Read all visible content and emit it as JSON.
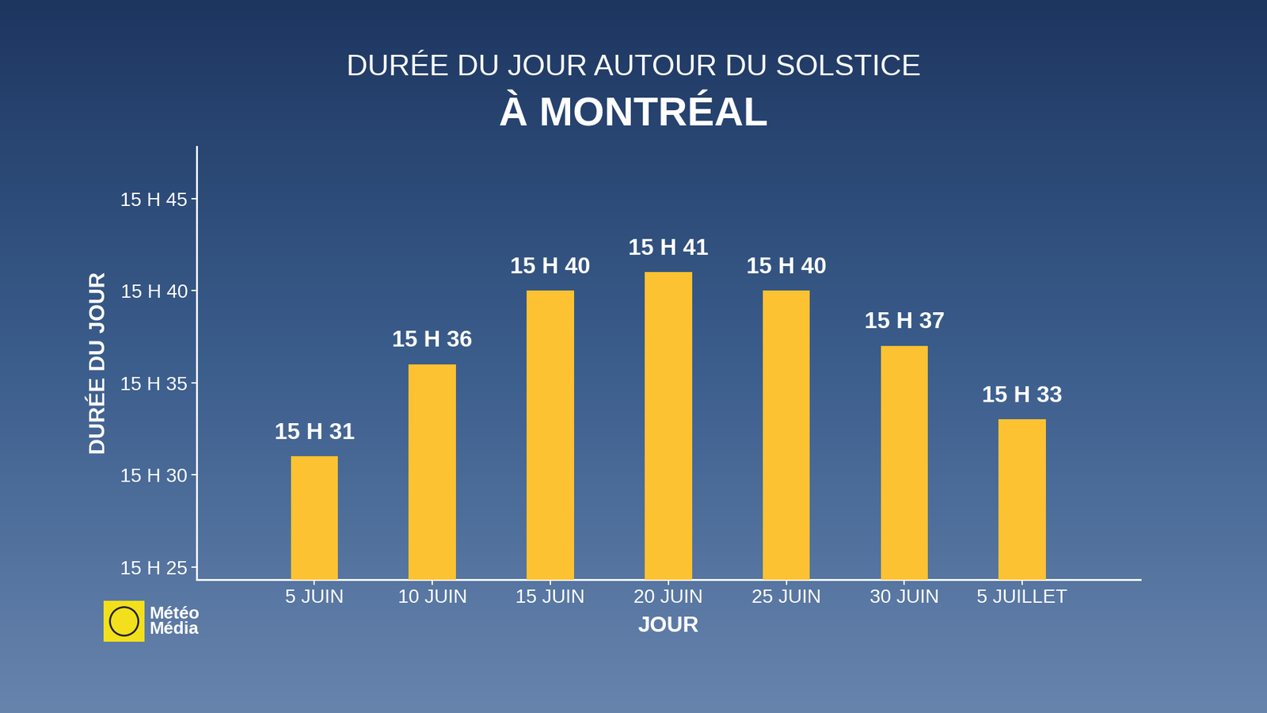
{
  "chart_data": {
    "type": "bar",
    "title": "DURÉE DU JOUR AUTOUR DU SOLSTICE",
    "subtitle": "À MONTRÉAL",
    "x_label": "JOUR",
    "y_label": "DURÉE DU JOUR",
    "annotations": [
      "Météo\nMédia"
    ],
    "categories": [
      "5 JUIN",
      "10 JUIN",
      "15 JUIN",
      "20 JUIN",
      "25 JUIN",
      "30 JUIN",
      "5 JUILLET"
    ],
    "values": [
      931,
      936,
      940,
      941,
      940,
      937,
      933
    ],
    "value_labels": [
      "15 H 31",
      "15 H 36",
      "15 H 40",
      "15 H 41",
      "15 H 40",
      "15 H 37",
      "15 H 33"
    ],
    "color": "#fcc232",
    "ylim": [
      924.3,
      947.8
    ],
    "yticks": [
      {
        "value": 925,
        "label": "15 H 25"
      },
      {
        "value": 930,
        "label": "15 H 30"
      },
      {
        "value": 935,
        "label": "15 H 35"
      },
      {
        "value": 940,
        "label": "15 H 40"
      },
      {
        "value": 945,
        "label": "15 H 45"
      }
    ],
    "grid": false,
    "data_labels": true
  }
}
